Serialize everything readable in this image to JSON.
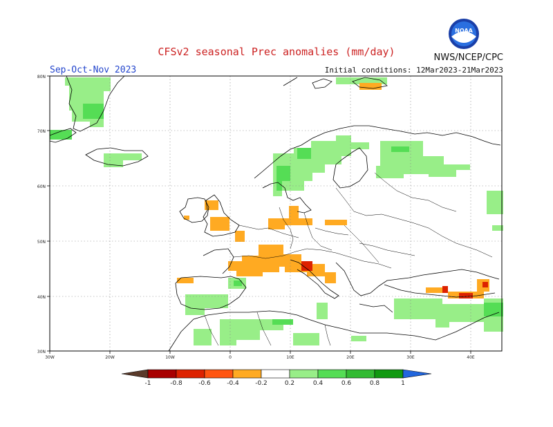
{
  "header": {
    "title": "CFSv2 seasonal Prec anomalies (mm/day)",
    "agency": "NWS/NCEP/CPC",
    "season": "Sep-Oct-Nov 2023",
    "initial_conditions": "Initial conditions: 12Mar2023-21Mar2023",
    "logo_text": "NOAA"
  },
  "map": {
    "lon_ticks": [
      "30W",
      "20W",
      "10W",
      "0",
      "10E",
      "20E",
      "30E",
      "40E"
    ],
    "lat_ticks": [
      "30N",
      "40N",
      "50N",
      "60N",
      "70N",
      "80N"
    ],
    "grid": true
  },
  "colorbar": {
    "labels": [
      "-1",
      "-0.8",
      "-0.6",
      "-0.4",
      "-0.2",
      "0.2",
      "0.4",
      "0.6",
      "0.8",
      "1"
    ],
    "colors": {
      "below_min": "#5a3a2a",
      "n1_08": "#a80000",
      "n08_06": "#dd2200",
      "n06_04": "#ff5511",
      "n04_02": "#ffaa22",
      "p02_04": "#98ee88",
      "p04_06": "#55dd55",
      "p06_08": "#33bb33",
      "p08_1": "#119911",
      "above_max": "#2266dd"
    }
  }
}
